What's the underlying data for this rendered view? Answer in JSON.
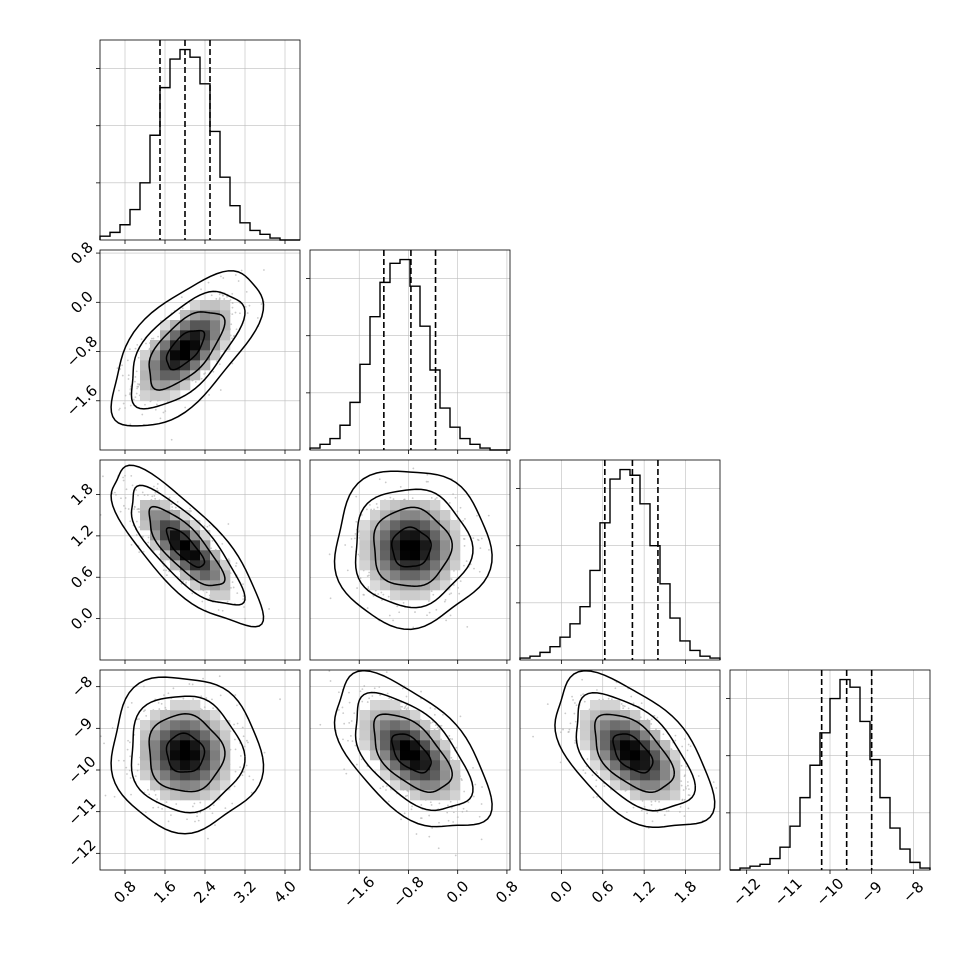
{
  "chart_data": {
    "type": "corner",
    "grid": true,
    "colors": {
      "hist": "#000000",
      "scatter": "#b4b4b4",
      "density_min": "#ffffff",
      "density_max": "#000000",
      "grid": "#bdbdbd"
    },
    "params": [
      {
        "range": [
          0.3,
          4.3
        ],
        "ticks": [
          0.8,
          1.6,
          2.4,
          3.2,
          4.0
        ],
        "tick_labels": [
          "0.8",
          "1.6",
          "2.4",
          "3.2",
          "4.0"
        ],
        "mean": 2.0,
        "std": 0.5,
        "quantiles": [
          1.5,
          2.0,
          2.5
        ],
        "hist_edges": [
          0.3,
          4.3
        ],
        "hist_counts": [
          2,
          4,
          8,
          16,
          30,
          55,
          80,
          95,
          100,
          96,
          82,
          57,
          33,
          18,
          9,
          5,
          3,
          1,
          0,
          0
        ]
      },
      {
        "range": [
          -2.4,
          0.85
        ],
        "ticks": [
          -1.6,
          -0.8,
          0.0,
          0.8
        ],
        "tick_labels": [
          "−1.6",
          "−0.8",
          "0.0",
          "0.8"
        ],
        "mean": -0.76,
        "std": 0.42,
        "quantiles": [
          -1.2,
          -0.76,
          -0.36
        ],
        "hist_edges": [
          -2.4,
          0.85
        ],
        "hist_counts": [
          1,
          3,
          6,
          13,
          25,
          45,
          70,
          88,
          98,
          100,
          86,
          65,
          42,
          22,
          12,
          6,
          3,
          1,
          0,
          0
        ]
      },
      {
        "range": [
          -0.6,
          2.3
        ],
        "ticks": [
          0.0,
          0.6,
          1.2,
          1.8
        ],
        "tick_labels": [
          "0.0",
          "0.6",
          "1.2",
          "1.8"
        ],
        "mean": 1.03,
        "std": 0.38,
        "quantiles": [
          0.63,
          1.03,
          1.4
        ],
        "hist_edges": [
          -0.6,
          2.3
        ],
        "hist_counts": [
          1,
          2,
          4,
          7,
          12,
          19,
          28,
          47,
          72,
          95,
          100,
          97,
          82,
          60,
          40,
          22,
          10,
          5,
          2,
          1
        ]
      },
      {
        "range": [
          -12.4,
          -7.6
        ],
        "ticks": [
          -12,
          -11,
          -10,
          -9,
          -8
        ],
        "tick_labels": [
          "−12",
          "−11",
          "−10",
          "−9",
          "−8"
        ],
        "mean": -9.6,
        "std": 0.62,
        "quantiles": [
          -10.2,
          -9.6,
          -9.0
        ],
        "hist_edges": [
          -12.4,
          -7.6
        ],
        "hist_counts": [
          0,
          1,
          2,
          3,
          6,
          12,
          23,
          38,
          55,
          72,
          90,
          100,
          96,
          78,
          58,
          38,
          22,
          11,
          4,
          1
        ]
      }
    ],
    "correlations": {
      "1-0": 0.62,
      "2-0": -0.78,
      "2-1": 0.0,
      "3-0": -0.05,
      "3-1": -0.55,
      "3-2": -0.52
    },
    "contour_levels_sigma": [
      0.5,
      1.0,
      1.5,
      2.0
    ],
    "n_scatter": 700
  }
}
